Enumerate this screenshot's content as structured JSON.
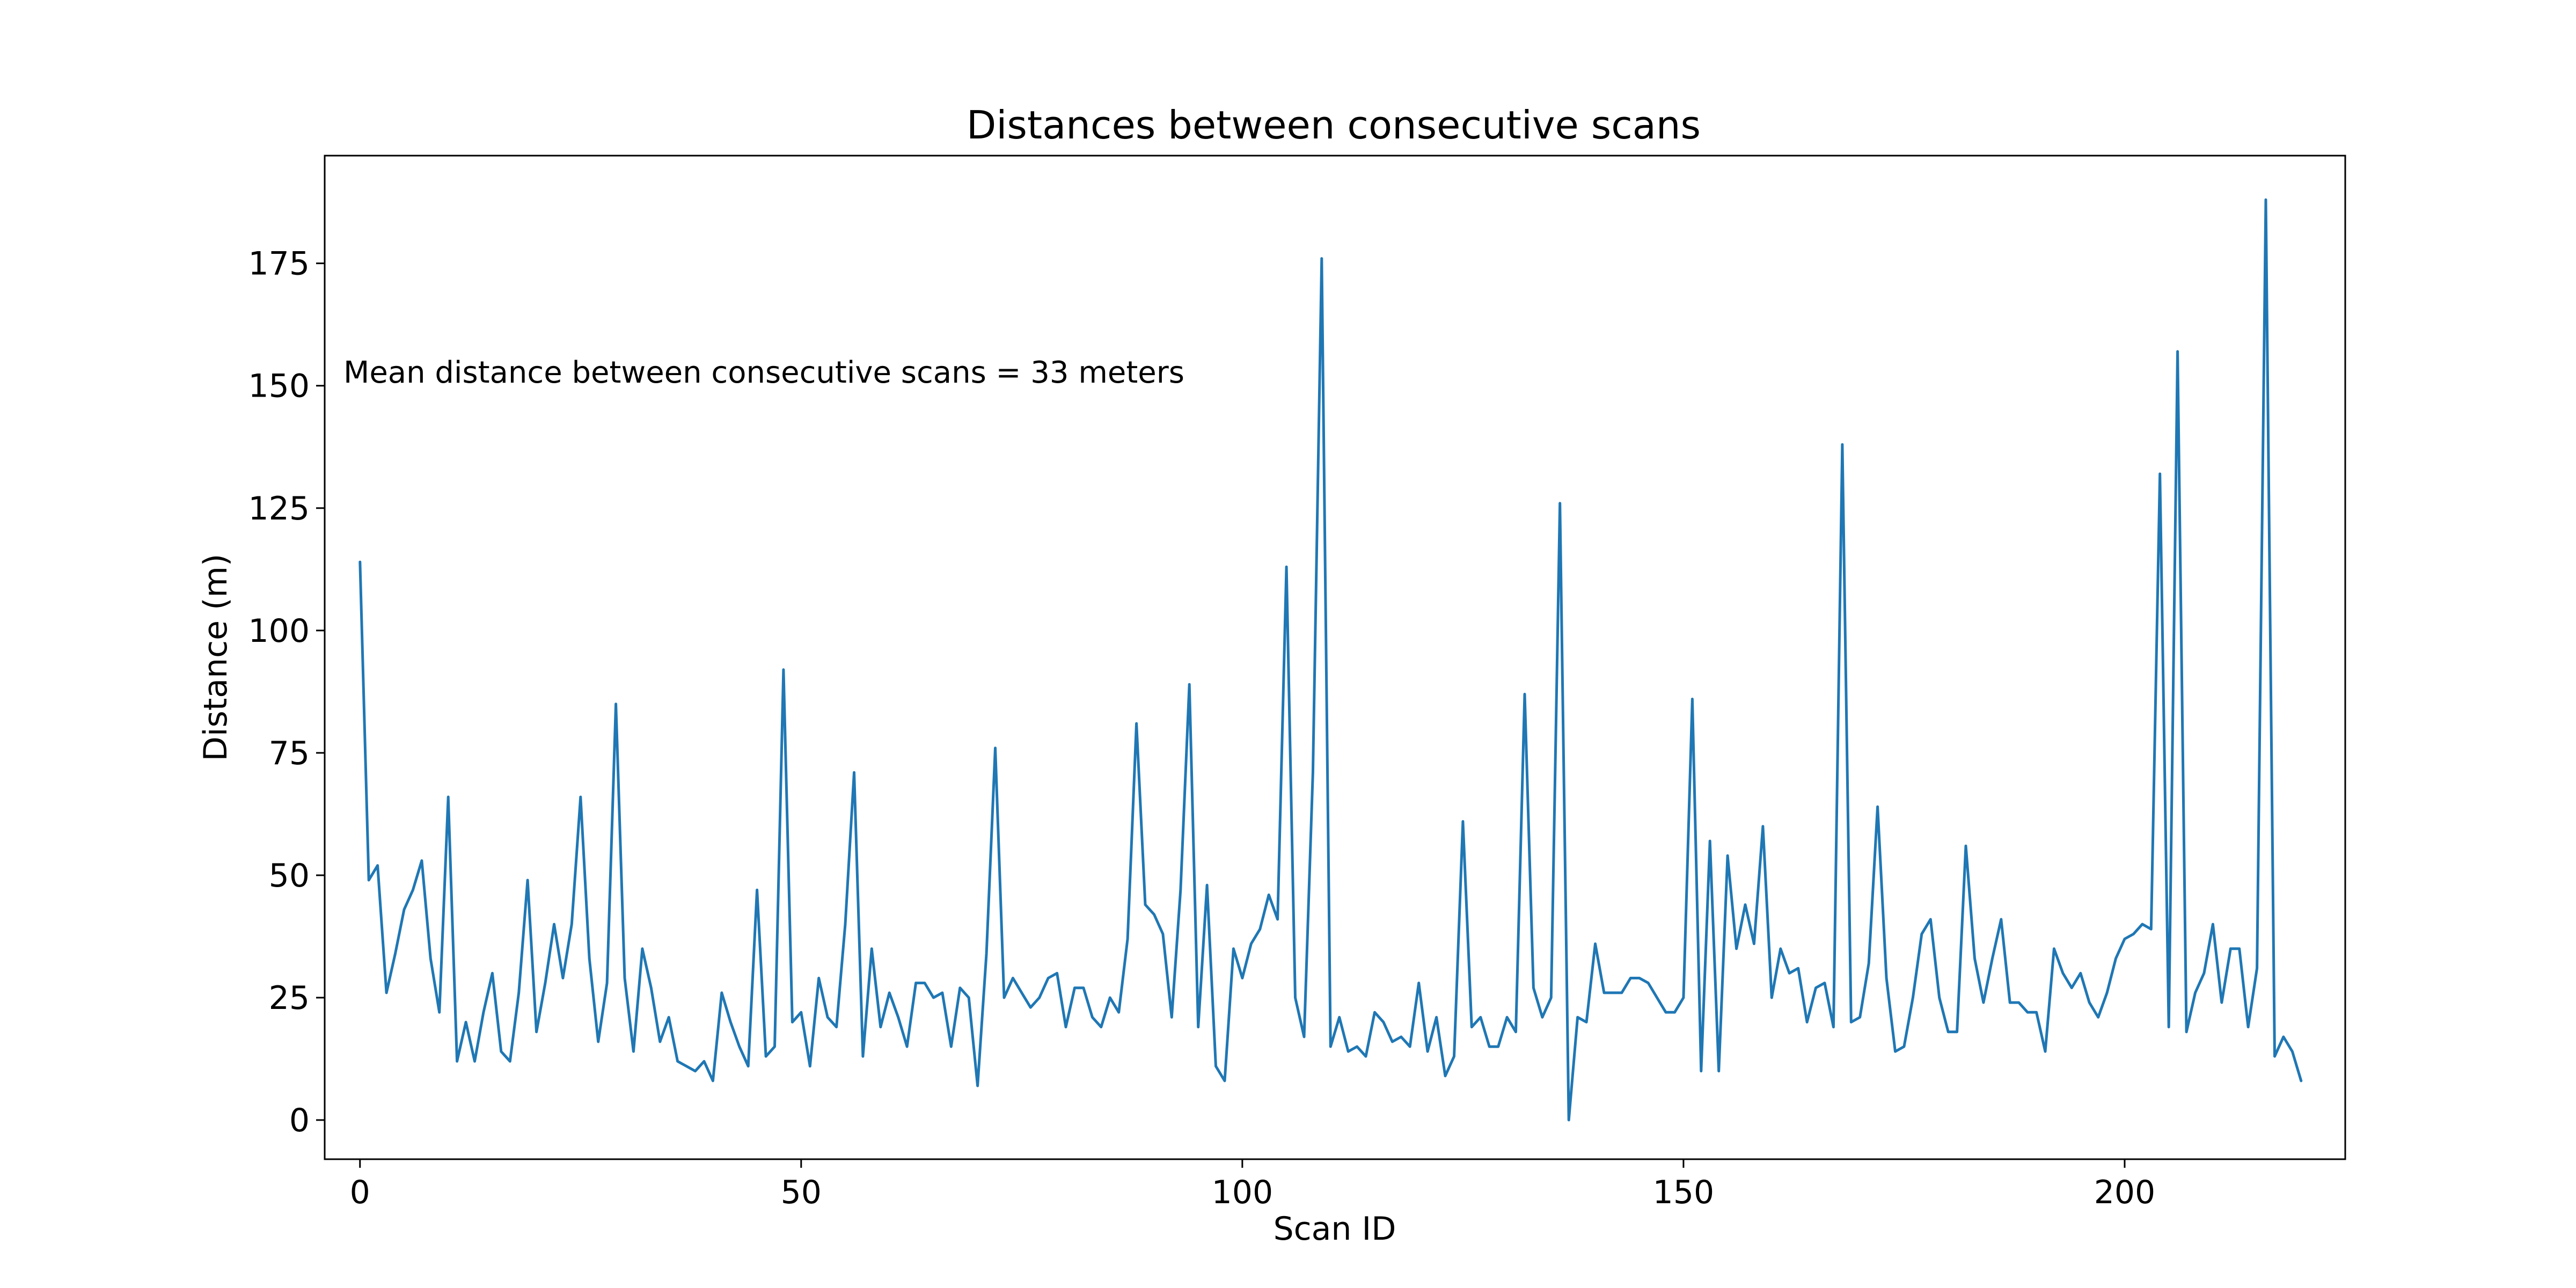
{
  "chart_data": {
    "type": "line",
    "title": "Distances between consecutive scans",
    "xlabel": "Scan ID",
    "ylabel": "Distance (m)",
    "xlim": [
      -4,
      225
    ],
    "ylim": [
      -8,
      197
    ],
    "xticks": [
      0,
      50,
      100,
      150,
      200
    ],
    "yticks": [
      0,
      25,
      50,
      75,
      100,
      125,
      150,
      175
    ],
    "grid": false,
    "annotation": "Mean distance between consecutive scans = 33 meters",
    "line_color": "#1f77b4",
    "series": [
      {
        "x": [
          0,
          1,
          2,
          3,
          4,
          5,
          6,
          7,
          8,
          9,
          10,
          11,
          12,
          13,
          14,
          15,
          16,
          17,
          18,
          19,
          20,
          21,
          22,
          23,
          24,
          25,
          26,
          27,
          28,
          29,
          30,
          31,
          32,
          33,
          34,
          35,
          36,
          37,
          38,
          39,
          40,
          41,
          42,
          43,
          44,
          45,
          46,
          47,
          48,
          49,
          50,
          51,
          52,
          53,
          54,
          55,
          56,
          57,
          58,
          59,
          60,
          61,
          62,
          63,
          64,
          65,
          66,
          67,
          68,
          69,
          70,
          71,
          72,
          73,
          74,
          75,
          76,
          77,
          78,
          79,
          80,
          81,
          82,
          83,
          84,
          85,
          86,
          87,
          88,
          89,
          90,
          91,
          92,
          93,
          94,
          95,
          96,
          97,
          98,
          99,
          100,
          101,
          102,
          103,
          104,
          105,
          106,
          107,
          108,
          109,
          110,
          111,
          112,
          113,
          114,
          115,
          116,
          117,
          118,
          119,
          120,
          121,
          122,
          123,
          124,
          125,
          126,
          127,
          128,
          129,
          130,
          131,
          132,
          133,
          134,
          135,
          136,
          137,
          138,
          139,
          140,
          141,
          142,
          143,
          144,
          145,
          146,
          147,
          148,
          149,
          150,
          151,
          152,
          153,
          154,
          155,
          156,
          157,
          158,
          159,
          160,
          161,
          162,
          163,
          164,
          165,
          166,
          167,
          168,
          169,
          170,
          171,
          172,
          173,
          174,
          175,
          176,
          177,
          178,
          179,
          180,
          181,
          182,
          183,
          184,
          185,
          186,
          187,
          188,
          189,
          190,
          191,
          192,
          193,
          194,
          195,
          196,
          197,
          198,
          199,
          200,
          201,
          202,
          203,
          204,
          205,
          206,
          207,
          208,
          209,
          210,
          211,
          212,
          213,
          214,
          215,
          216,
          217,
          218,
          219,
          220
        ],
        "values": [
          114,
          49,
          52,
          26,
          34,
          43,
          47,
          53,
          33,
          22,
          66,
          12,
          20,
          12,
          22,
          30,
          14,
          12,
          26,
          49,
          18,
          28,
          40,
          29,
          40,
          66,
          33,
          16,
          28,
          85,
          29,
          14,
          35,
          27,
          16,
          21,
          12,
          11,
          10,
          12,
          8,
          26,
          20,
          15,
          11,
          47,
          13,
          15,
          92,
          20,
          22,
          11,
          29,
          21,
          19,
          40,
          71,
          13,
          35,
          19,
          26,
          21,
          15,
          28,
          28,
          25,
          26,
          15,
          27,
          25,
          7,
          34,
          76,
          25,
          29,
          26,
          23,
          25,
          29,
          30,
          19,
          27,
          27,
          21,
          19,
          25,
          22,
          37,
          81,
          44,
          42,
          38,
          21,
          47,
          89,
          19,
          48,
          11,
          8,
          35,
          29,
          36,
          39,
          46,
          41,
          113,
          25,
          17,
          71,
          176,
          15,
          21,
          14,
          15,
          13,
          22,
          20,
          16,
          17,
          15,
          28,
          14,
          21,
          9,
          13,
          61,
          19,
          21,
          15,
          15,
          21,
          18,
          87,
          27,
          21,
          25,
          126,
          0,
          21,
          20,
          36,
          26,
          26,
          26,
          29,
          29,
          28,
          25,
          22,
          22,
          25,
          86,
          10,
          57,
          10,
          54,
          35,
          44,
          36,
          60,
          25,
          35,
          30,
          31,
          20,
          27,
          28,
          19,
          138,
          20,
          21,
          32,
          64,
          29,
          14,
          15,
          25,
          38,
          41,
          25,
          18,
          18,
          56,
          33,
          24,
          33,
          41,
          24,
          24,
          22,
          22,
          14,
          35,
          30,
          27,
          30,
          24,
          21,
          26,
          33,
          37,
          38,
          40,
          39,
          132,
          19,
          157,
          18,
          26,
          30,
          40,
          24,
          35,
          35,
          19,
          31,
          188,
          13,
          17,
          14,
          8
        ]
      }
    ]
  }
}
